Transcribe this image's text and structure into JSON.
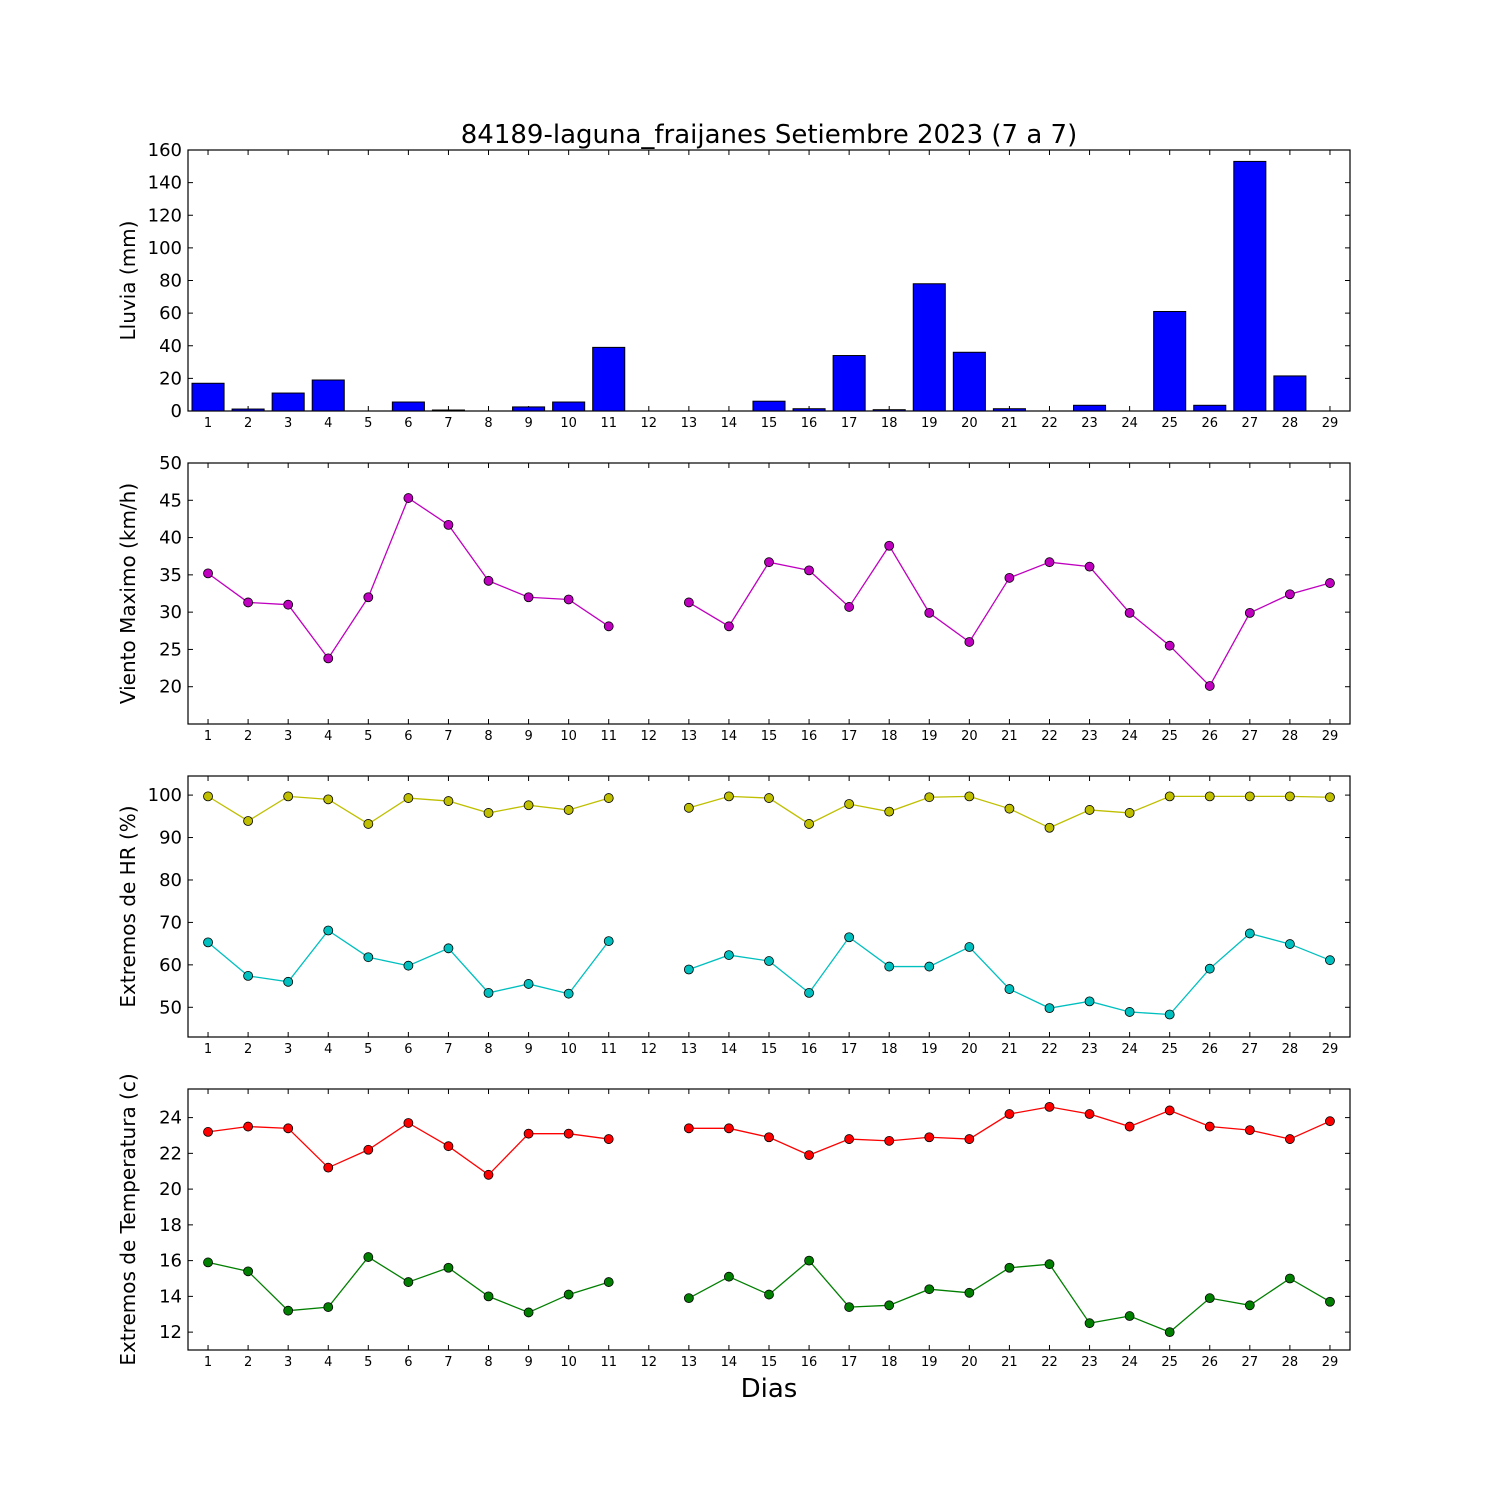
{
  "title": "84189-laguna_fraijanes Setiembre 2023  (7 a 7)",
  "xlabel": "Dias",
  "chart_data": [
    {
      "type": "bar",
      "ylabel": "Lluvia (mm)",
      "ylim": [
        0,
        160
      ],
      "yticks": [
        0,
        20,
        40,
        60,
        80,
        100,
        120,
        140,
        160
      ],
      "categories": [
        1,
        2,
        3,
        4,
        5,
        6,
        7,
        8,
        9,
        10,
        11,
        12,
        13,
        14,
        15,
        16,
        17,
        18,
        19,
        20,
        21,
        22,
        23,
        24,
        25,
        26,
        27,
        28,
        29
      ],
      "colors": {
        "bar": "#0000ff"
      },
      "values": [
        17,
        1.2,
        11,
        19,
        0,
        5.5,
        0.6,
        0,
        2.5,
        5.5,
        39,
        0,
        0,
        0,
        6,
        1.4,
        34,
        0.8,
        78,
        36,
        1.4,
        0,
        3.5,
        0,
        61,
        3.5,
        153,
        21.5,
        0
      ]
    },
    {
      "type": "line",
      "ylabel": "Viento Maximo (km/h)",
      "ylim": [
        15,
        50
      ],
      "yticks": [
        20,
        25,
        30,
        35,
        40,
        45,
        50
      ],
      "x": [
        1,
        2,
        3,
        4,
        5,
        6,
        7,
        8,
        9,
        10,
        11,
        12,
        13,
        14,
        15,
        16,
        17,
        18,
        19,
        20,
        21,
        22,
        23,
        24,
        25,
        26,
        27,
        28,
        29
      ],
      "series": [
        {
          "color": "#bf00bf",
          "values": [
            35.2,
            31.3,
            31.0,
            23.8,
            32.0,
            45.3,
            41.7,
            34.2,
            32.0,
            31.7,
            28.1,
            null,
            31.3,
            28.1,
            36.7,
            35.6,
            30.7,
            38.9,
            29.9,
            26.0,
            34.6,
            36.7,
            36.1,
            29.9,
            25.5,
            20.1,
            29.9,
            32.4,
            33.9
          ]
        }
      ]
    },
    {
      "type": "line",
      "ylabel": "Extremos de HR (%)",
      "ylim": [
        43,
        104.5
      ],
      "yticks": [
        50,
        60,
        70,
        80,
        90,
        100
      ],
      "x": [
        1,
        2,
        3,
        4,
        5,
        6,
        7,
        8,
        9,
        10,
        11,
        12,
        13,
        14,
        15,
        16,
        17,
        18,
        19,
        20,
        21,
        22,
        23,
        24,
        25,
        26,
        27,
        28,
        29
      ],
      "series": [
        {
          "color": "#bfbf00",
          "values": [
            99.7,
            93.9,
            99.7,
            99.0,
            93.2,
            99.3,
            98.6,
            95.8,
            97.6,
            96.5,
            99.3,
            null,
            97.0,
            99.7,
            99.3,
            93.2,
            97.9,
            96.1,
            99.5,
            99.7,
            96.8,
            92.3,
            96.5,
            95.8,
            99.7,
            99.7,
            99.7,
            99.7,
            99.5
          ]
        },
        {
          "color": "#00bfbf",
          "values": [
            65.3,
            57.4,
            56.0,
            68.1,
            61.8,
            59.8,
            63.9,
            53.4,
            55.5,
            53.2,
            65.6,
            null,
            58.9,
            62.3,
            60.9,
            53.4,
            66.5,
            59.6,
            59.6,
            64.2,
            54.3,
            49.8,
            51.4,
            48.9,
            48.3,
            59.1,
            67.4,
            64.9,
            61.1
          ]
        }
      ]
    },
    {
      "type": "line",
      "ylabel": "Extremos de Temperatura (c)",
      "ylim": [
        11,
        25.6
      ],
      "yticks": [
        12,
        14,
        16,
        18,
        20,
        22,
        24
      ],
      "x": [
        1,
        2,
        3,
        4,
        5,
        6,
        7,
        8,
        9,
        10,
        11,
        12,
        13,
        14,
        15,
        16,
        17,
        18,
        19,
        20,
        21,
        22,
        23,
        24,
        25,
        26,
        27,
        28,
        29
      ],
      "series": [
        {
          "color": "#ff0000",
          "values": [
            23.2,
            23.5,
            23.4,
            21.2,
            22.2,
            23.7,
            22.4,
            20.8,
            23.1,
            23.1,
            22.8,
            null,
            23.4,
            23.4,
            22.9,
            21.9,
            22.8,
            22.7,
            22.9,
            22.8,
            24.2,
            24.6,
            24.2,
            23.5,
            24.4,
            23.5,
            23.3,
            22.8,
            23.8
          ]
        },
        {
          "color": "#007f00",
          "values": [
            15.9,
            15.4,
            13.2,
            13.4,
            16.2,
            14.8,
            15.6,
            14.0,
            13.1,
            14.1,
            14.8,
            null,
            13.9,
            15.1,
            14.1,
            16.0,
            13.4,
            13.5,
            14.4,
            14.2,
            15.6,
            15.8,
            12.5,
            12.9,
            12.0,
            13.9,
            13.5,
            15.0,
            13.7
          ]
        }
      ]
    }
  ]
}
